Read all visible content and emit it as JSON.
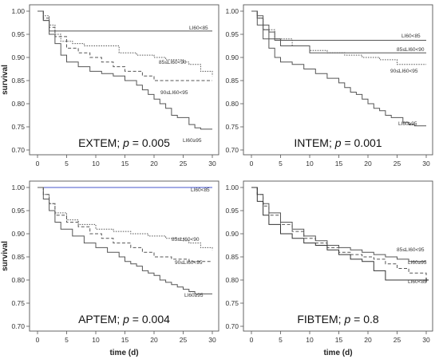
{
  "chart_data": [
    {
      "type": "line",
      "title": "EXTEM; p = 0.005",
      "ylabel": "survival",
      "xlabel": "",
      "xlim": [
        0,
        30
      ],
      "ylim": [
        0.7,
        1.0
      ],
      "xticks": [
        "0",
        "5",
        "10",
        "15",
        "20",
        "25",
        "30"
      ],
      "yticks": [
        "0.70",
        "0.75",
        "0.80",
        "0.85",
        "0.90",
        "0.95",
        "1.00"
      ],
      "series": [
        {
          "name": "LI60<85",
          "style": "solid",
          "color": "#555555",
          "x": [
            0,
            1,
            2,
            30
          ],
          "y": [
            1.0,
            0.98,
            0.957,
            0.957
          ]
        },
        {
          "name": "85≤LI60<90",
          "style": "dotted",
          "color": "#555555",
          "x": [
            0,
            1,
            2,
            3,
            4,
            6,
            8,
            14,
            17,
            20,
            22,
            25,
            26,
            28,
            30
          ],
          "y": [
            1.0,
            0.99,
            0.97,
            0.95,
            0.935,
            0.93,
            0.925,
            0.91,
            0.905,
            0.9,
            0.895,
            0.89,
            0.885,
            0.87,
            0.86
          ]
        },
        {
          "name": "90≤LI60<95",
          "style": "dashed",
          "color": "#555555",
          "x": [
            0,
            1,
            2,
            3,
            5,
            7,
            9,
            11,
            13,
            15,
            18,
            20,
            30
          ],
          "y": [
            1.0,
            0.985,
            0.965,
            0.945,
            0.92,
            0.91,
            0.9,
            0.89,
            0.88,
            0.87,
            0.86,
            0.85,
            0.85
          ]
        },
        {
          "name": "LI60≥95",
          "style": "solid",
          "color": "#555555",
          "x": [
            0,
            1,
            2,
            3,
            4,
            5,
            7,
            9,
            11,
            13,
            15,
            17,
            18,
            19,
            20,
            21,
            22,
            23,
            24,
            26,
            27,
            28,
            30
          ],
          "y": [
            1.0,
            0.98,
            0.95,
            0.93,
            0.905,
            0.89,
            0.88,
            0.87,
            0.865,
            0.86,
            0.85,
            0.84,
            0.83,
            0.82,
            0.81,
            0.8,
            0.79,
            0.775,
            0.77,
            0.755,
            0.748,
            0.745,
            0.745
          ]
        }
      ]
    },
    {
      "type": "line",
      "title": "INTEM; p = 0.001",
      "ylabel": "",
      "xlabel": "",
      "xlim": [
        0,
        30
      ],
      "ylim": [
        0.7,
        1.0
      ],
      "xticks": [
        "0",
        "5",
        "10",
        "15",
        "20",
        "25",
        "30"
      ],
      "yticks": [
        "0.70",
        "0.75",
        "0.80",
        "0.85",
        "0.90",
        "0.95",
        "1.00"
      ],
      "series": [
        {
          "name": "LI60<85",
          "style": "solid",
          "color": "#555555",
          "x": [
            0,
            1,
            2,
            3,
            4,
            30
          ],
          "y": [
            1.0,
            0.99,
            0.97,
            0.955,
            0.937,
            0.937
          ]
        },
        {
          "name": "85≤LI60<90",
          "style": "solid",
          "color": "#555555",
          "x": [
            0,
            1,
            2,
            3,
            5,
            10,
            30
          ],
          "y": [
            1.0,
            0.985,
            0.96,
            0.94,
            0.925,
            0.91,
            0.91
          ]
        },
        {
          "name": "90≤LI60<95",
          "style": "dotted",
          "color": "#555555",
          "x": [
            0,
            1,
            2,
            4,
            7,
            10,
            13,
            16,
            19,
            22,
            25,
            30
          ],
          "y": [
            1.0,
            0.985,
            0.96,
            0.94,
            0.925,
            0.915,
            0.91,
            0.905,
            0.9,
            0.895,
            0.885,
            0.885
          ]
        },
        {
          "name": "LI60≥95",
          "style": "solid",
          "color": "#555555",
          "x": [
            0,
            1,
            2,
            3,
            4,
            5,
            7,
            9,
            11,
            13,
            15,
            16,
            17,
            18,
            19,
            20,
            21,
            22,
            23,
            24,
            26,
            27,
            28,
            30
          ],
          "y": [
            1.0,
            0.97,
            0.94,
            0.92,
            0.9,
            0.89,
            0.885,
            0.875,
            0.865,
            0.855,
            0.845,
            0.835,
            0.825,
            0.82,
            0.81,
            0.8,
            0.79,
            0.785,
            0.775,
            0.77,
            0.76,
            0.755,
            0.752,
            0.752
          ]
        }
      ]
    },
    {
      "type": "line",
      "title": "APTEM; p = 0.004",
      "ylabel": "survival",
      "xlabel": "time (d)",
      "xlim": [
        0,
        30
      ],
      "ylim": [
        0.7,
        1.0
      ],
      "xticks": [
        "0",
        "5",
        "10",
        "15",
        "20",
        "25",
        "30"
      ],
      "yticks": [
        "0.70",
        "0.75",
        "0.80",
        "0.85",
        "0.90",
        "0.95",
        "1.00"
      ],
      "series": [
        {
          "name": "LI60<85",
          "style": "solid",
          "color": "#4455cc",
          "x": [
            0,
            1,
            30
          ],
          "y": [
            1.0,
            1.0,
            1.0
          ]
        },
        {
          "name": "85≤LI60<90",
          "style": "dotted",
          "color": "#555555",
          "x": [
            0,
            1,
            2,
            3,
            5,
            7,
            10,
            13,
            16,
            19,
            22,
            25,
            26,
            28,
            30
          ],
          "y": [
            1.0,
            0.985,
            0.965,
            0.945,
            0.93,
            0.92,
            0.91,
            0.905,
            0.9,
            0.895,
            0.89,
            0.885,
            0.88,
            0.87,
            0.865
          ]
        },
        {
          "name": "90≤LI60<95",
          "style": "dashed",
          "color": "#555555",
          "x": [
            0,
            1,
            2,
            3,
            5,
            7,
            9,
            11,
            13,
            16,
            18,
            20,
            23,
            26,
            30
          ],
          "y": [
            1.0,
            0.985,
            0.965,
            0.94,
            0.925,
            0.915,
            0.9,
            0.89,
            0.88,
            0.87,
            0.86,
            0.85,
            0.845,
            0.84,
            0.84
          ]
        },
        {
          "name": "LI60≥95",
          "style": "solid",
          "color": "#555555",
          "x": [
            0,
            1,
            2,
            3,
            4,
            6,
            8,
            10,
            12,
            14,
            15,
            16,
            17,
            18,
            19,
            20,
            21,
            22,
            23,
            24,
            25,
            26,
            27,
            30
          ],
          "y": [
            1.0,
            0.975,
            0.95,
            0.925,
            0.91,
            0.895,
            0.88,
            0.87,
            0.86,
            0.85,
            0.84,
            0.835,
            0.83,
            0.82,
            0.815,
            0.81,
            0.8,
            0.795,
            0.79,
            0.785,
            0.78,
            0.775,
            0.77,
            0.77
          ]
        }
      ]
    },
    {
      "type": "line",
      "title": "FIBTEM; p = 0.8",
      "ylabel": "",
      "xlabel": "time (d)",
      "xlim": [
        0,
        30
      ],
      "ylim": [
        0.7,
        1.0
      ],
      "xticks": [
        "0",
        "5",
        "10",
        "15",
        "20",
        "25",
        "30"
      ],
      "yticks": [
        "0.70",
        "0.75",
        "0.80",
        "0.85",
        "0.90",
        "0.95",
        "1.00"
      ],
      "series": [
        {
          "name": "85≤LI60<95",
          "style": "solid",
          "color": "#555555",
          "x": [
            0,
            1,
            2,
            3,
            5,
            7,
            9,
            11,
            13,
            15,
            17,
            19,
            21,
            23,
            25,
            27,
            30
          ],
          "y": [
            1.0,
            0.985,
            0.965,
            0.945,
            0.925,
            0.91,
            0.895,
            0.885,
            0.875,
            0.87,
            0.865,
            0.86,
            0.855,
            0.85,
            0.845,
            0.84,
            0.84
          ]
        },
        {
          "name": "LI60≥95",
          "style": "dashed",
          "color": "#555555",
          "x": [
            0,
            1,
            2,
            3,
            5,
            7,
            9,
            11,
            13,
            15,
            17,
            19,
            21,
            23,
            25,
            27,
            30
          ],
          "y": [
            1.0,
            0.985,
            0.96,
            0.94,
            0.92,
            0.905,
            0.89,
            0.88,
            0.87,
            0.86,
            0.855,
            0.85,
            0.845,
            0.835,
            0.825,
            0.815,
            0.81
          ]
        },
        {
          "name": "LI60<85",
          "style": "solid",
          "color": "#333333",
          "x": [
            0,
            1,
            2,
            3,
            5,
            7,
            9,
            11,
            13,
            15,
            17,
            19,
            21,
            23,
            30
          ],
          "y": [
            1.0,
            0.97,
            0.94,
            0.92,
            0.9,
            0.89,
            0.88,
            0.875,
            0.865,
            0.855,
            0.845,
            0.84,
            0.82,
            0.8,
            0.8
          ]
        }
      ]
    }
  ]
}
